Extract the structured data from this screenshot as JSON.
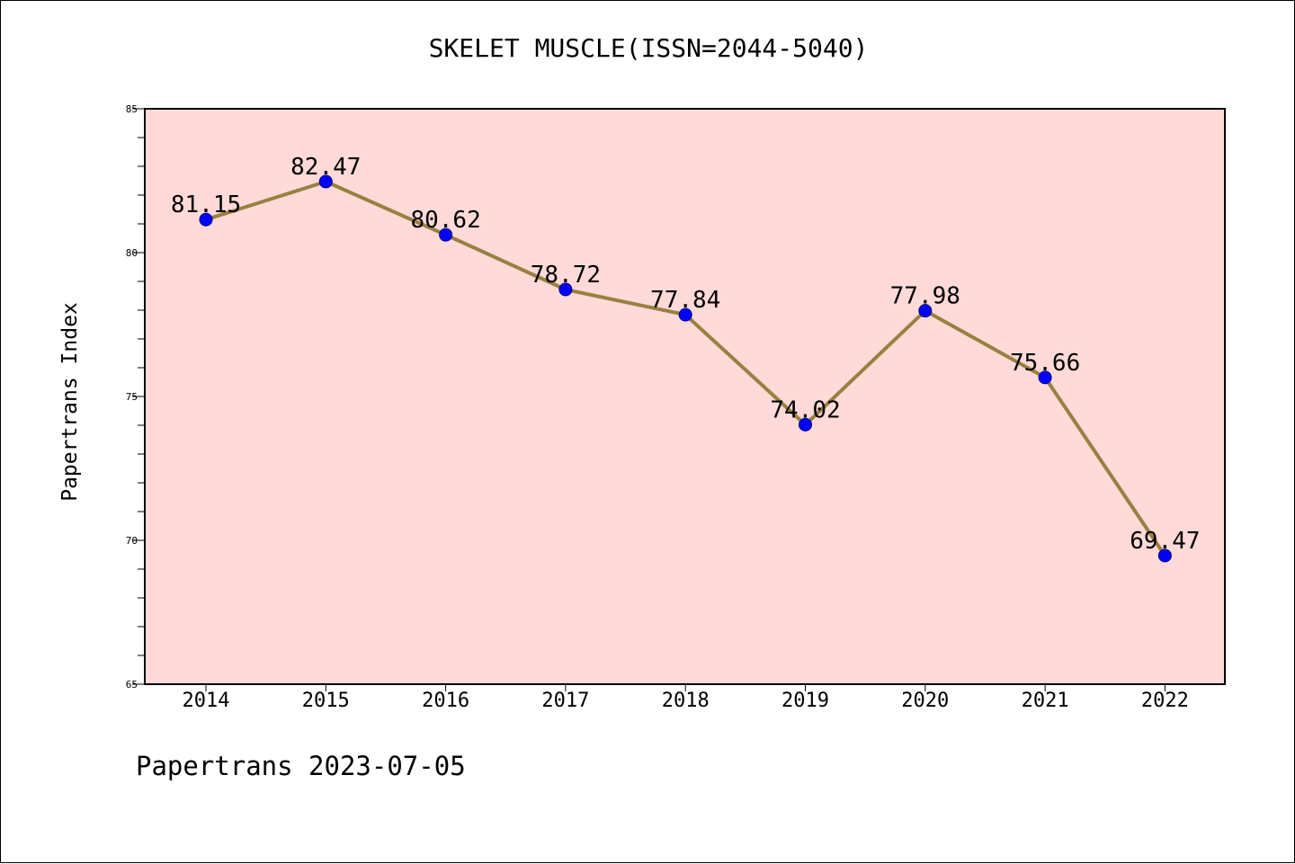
{
  "chart_data": {
    "type": "line",
    "title": "SKELET MUSCLE(ISSN=2044-5040)",
    "ylabel": "Papertrans Index",
    "xlabel": "",
    "footer": "Papertrans 2023-07-05",
    "categories": [
      "2014",
      "2015",
      "2016",
      "2017",
      "2018",
      "2019",
      "2020",
      "2021",
      "2022"
    ],
    "values": [
      81.15,
      82.47,
      80.62,
      78.72,
      77.84,
      74.02,
      77.98,
      75.66,
      69.47
    ],
    "value_labels": [
      "81.15",
      "82.47",
      "80.62",
      "78.72",
      "77.84",
      "74.02",
      "77.98",
      "75.66",
      "69.47"
    ],
    "ylim": [
      65,
      85
    ],
    "yticks": [
      "65",
      "70",
      "75",
      "80",
      "85"
    ],
    "grid": false,
    "colors": {
      "plot_background": "#FFDAD8",
      "line": "#9A8040",
      "marker": "#0000FF"
    }
  }
}
